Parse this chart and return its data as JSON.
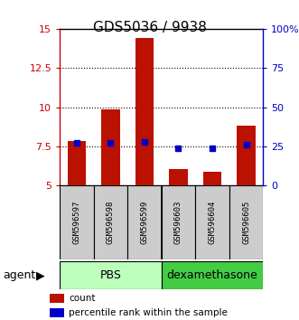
{
  "title": "GDS5036 / 9938",
  "samples": [
    "GSM596597",
    "GSM596598",
    "GSM596599",
    "GSM596603",
    "GSM596604",
    "GSM596605"
  ],
  "groups": [
    "PBS",
    "PBS",
    "PBS",
    "dexamethasone",
    "dexamethasone",
    "dexamethasone"
  ],
  "count_values": [
    7.85,
    9.85,
    14.4,
    6.05,
    5.9,
    8.85
  ],
  "percentile_values": [
    27,
    27,
    28,
    24,
    24,
    26
  ],
  "ylim_left": [
    5,
    15
  ],
  "ylim_right": [
    0,
    100
  ],
  "yticks_left": [
    5,
    7.5,
    10,
    12.5,
    15
  ],
  "yticks_right": [
    0,
    25,
    50,
    75,
    100
  ],
  "ytick_labels_left": [
    "5",
    "7.5",
    "10",
    "12.5",
    "15"
  ],
  "ytick_labels_right": [
    "0",
    "25",
    "50",
    "75",
    "100%"
  ],
  "bar_color": "#bb1100",
  "dot_color": "#0000cc",
  "bar_bottom": 5.0,
  "pbs_color": "#bbffbb",
  "dex_color": "#44cc44",
  "left_axis_color": "#cc0000",
  "right_axis_color": "#0000cc",
  "legend_items": [
    {
      "label": "count",
      "color": "#bb1100"
    },
    {
      "label": "percentile rank within the sample",
      "color": "#0000cc"
    }
  ],
  "agent_label": "agent",
  "bar_width": 0.55,
  "figsize": [
    3.31,
    3.54
  ],
  "dpi": 100
}
